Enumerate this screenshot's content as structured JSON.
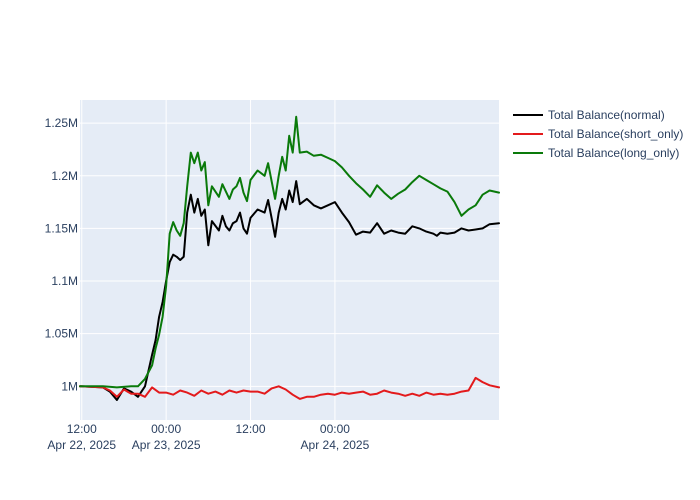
{
  "chart_data": {
    "type": "line",
    "title": "",
    "xlabel": "",
    "ylabel": "",
    "x_range": [
      "2025-04-22 11:45",
      "2025-04-24 23:20"
    ],
    "ylim": [
      968000,
      1272000
    ],
    "x_ticks": [
      {
        "at": "2025-04-22 12:00",
        "line1": "12:00",
        "line2": "Apr 22, 2025"
      },
      {
        "at": "2025-04-23 00:00",
        "line1": "00:00",
        "line2": "Apr 23, 2025"
      },
      {
        "at": "2025-04-23 12:00",
        "line1": "12:00",
        "line2": ""
      },
      {
        "at": "2025-04-24 00:00",
        "line1": "00:00",
        "line2": "Apr 24, 2025"
      }
    ],
    "y_ticks": [
      {
        "value": 1000000,
        "label": "1M"
      },
      {
        "value": 1050000,
        "label": "1.05M"
      },
      {
        "value": 1100000,
        "label": "1.1M"
      },
      {
        "value": 1150000,
        "label": "1.15M"
      },
      {
        "value": 1200000,
        "label": "1.2M"
      },
      {
        "value": 1250000,
        "label": "1.25M"
      }
    ],
    "grid": true,
    "legend_position": "right",
    "series": [
      {
        "name": "Total Balance(normal)",
        "color": "#000000",
        "points": [
          [
            "2025-04-22 11:45",
            1000000
          ],
          [
            "2025-04-22 15:00",
            999000
          ],
          [
            "2025-04-22 16:00",
            995000
          ],
          [
            "2025-04-22 17:00",
            987000
          ],
          [
            "2025-04-22 18:00",
            998000
          ],
          [
            "2025-04-22 19:00",
            995000
          ],
          [
            "2025-04-22 20:00",
            990000
          ],
          [
            "2025-04-22 21:00",
            1000000
          ],
          [
            "2025-04-22 22:00",
            1030000
          ],
          [
            "2025-04-22 22:30",
            1044000
          ],
          [
            "2025-04-22 23:00",
            1066000
          ],
          [
            "2025-04-22 23:30",
            1080000
          ],
          [
            "2025-04-23 00:00",
            1100000
          ],
          [
            "2025-04-23 00:30",
            1118000
          ],
          [
            "2025-04-23 01:00",
            1125000
          ],
          [
            "2025-04-23 01:30",
            1123000
          ],
          [
            "2025-04-23 02:00",
            1120000
          ],
          [
            "2025-04-23 02:30",
            1123000
          ],
          [
            "2025-04-23 03:00",
            1165000
          ],
          [
            "2025-04-23 03:30",
            1182000
          ],
          [
            "2025-04-23 04:00",
            1165000
          ],
          [
            "2025-04-23 04:30",
            1178000
          ],
          [
            "2025-04-23 05:00",
            1162000
          ],
          [
            "2025-04-23 05:30",
            1168000
          ],
          [
            "2025-04-23 06:00",
            1134000
          ],
          [
            "2025-04-23 06:30",
            1157000
          ],
          [
            "2025-04-23 07:30",
            1148000
          ],
          [
            "2025-04-23 08:00",
            1162000
          ],
          [
            "2025-04-23 08:30",
            1152000
          ],
          [
            "2025-04-23 09:00",
            1148000
          ],
          [
            "2025-04-23 09:30",
            1155000
          ],
          [
            "2025-04-23 10:00",
            1157000
          ],
          [
            "2025-04-23 10:30",
            1165000
          ],
          [
            "2025-04-23 11:00",
            1150000
          ],
          [
            "2025-04-23 11:30",
            1145000
          ],
          [
            "2025-04-23 12:00",
            1160000
          ],
          [
            "2025-04-23 13:00",
            1168000
          ],
          [
            "2025-04-23 14:00",
            1165000
          ],
          [
            "2025-04-23 14:30",
            1177000
          ],
          [
            "2025-04-23 15:00",
            1160000
          ],
          [
            "2025-04-23 15:30",
            1142000
          ],
          [
            "2025-04-23 16:00",
            1165000
          ],
          [
            "2025-04-23 16:30",
            1178000
          ],
          [
            "2025-04-23 17:00",
            1168000
          ],
          [
            "2025-04-23 17:30",
            1186000
          ],
          [
            "2025-04-23 18:00",
            1175000
          ],
          [
            "2025-04-23 18:30",
            1195000
          ],
          [
            "2025-04-23 19:00",
            1173000
          ],
          [
            "2025-04-23 20:00",
            1178000
          ],
          [
            "2025-04-23 21:00",
            1172000
          ],
          [
            "2025-04-23 22:00",
            1169000
          ],
          [
            "2025-04-23 23:00",
            1172000
          ],
          [
            "2025-04-24 00:00",
            1175000
          ],
          [
            "2025-04-24 01:00",
            1165000
          ],
          [
            "2025-04-24 02:00",
            1156000
          ],
          [
            "2025-04-24 03:00",
            1144000
          ],
          [
            "2025-04-24 04:00",
            1147000
          ],
          [
            "2025-04-24 05:00",
            1146000
          ],
          [
            "2025-04-24 06:00",
            1155000
          ],
          [
            "2025-04-24 07:00",
            1145000
          ],
          [
            "2025-04-24 08:00",
            1148000
          ],
          [
            "2025-04-24 09:00",
            1146000
          ],
          [
            "2025-04-24 10:00",
            1145000
          ],
          [
            "2025-04-24 11:00",
            1152000
          ],
          [
            "2025-04-24 12:00",
            1150000
          ],
          [
            "2025-04-24 13:00",
            1147000
          ],
          [
            "2025-04-24 14:00",
            1145000
          ],
          [
            "2025-04-24 14:30",
            1143000
          ],
          [
            "2025-04-24 15:00",
            1146000
          ],
          [
            "2025-04-24 16:00",
            1145000
          ],
          [
            "2025-04-24 17:00",
            1146000
          ],
          [
            "2025-04-24 18:00",
            1150000
          ],
          [
            "2025-04-24 19:00",
            1148000
          ],
          [
            "2025-04-24 20:00",
            1149000
          ],
          [
            "2025-04-24 21:00",
            1150000
          ],
          [
            "2025-04-24 22:00",
            1154000
          ],
          [
            "2025-04-24 23:20",
            1155000
          ]
        ]
      },
      {
        "name": "Total Balance(short_only)",
        "color": "#e31a1c",
        "points": [
          [
            "2025-04-22 11:45",
            1000000
          ],
          [
            "2025-04-22 15:00",
            999000
          ],
          [
            "2025-04-22 16:00",
            996000
          ],
          [
            "2025-04-22 17:00",
            990000
          ],
          [
            "2025-04-22 18:00",
            997000
          ],
          [
            "2025-04-22 19:00",
            993000
          ],
          [
            "2025-04-22 20:00",
            993000
          ],
          [
            "2025-04-22 21:00",
            990000
          ],
          [
            "2025-04-22 22:00",
            999000
          ],
          [
            "2025-04-22 23:00",
            994000
          ],
          [
            "2025-04-23 00:00",
            994000
          ],
          [
            "2025-04-23 01:00",
            992000
          ],
          [
            "2025-04-23 02:00",
            996000
          ],
          [
            "2025-04-23 03:00",
            994000
          ],
          [
            "2025-04-23 04:00",
            991000
          ],
          [
            "2025-04-23 05:00",
            996000
          ],
          [
            "2025-04-23 06:00",
            993000
          ],
          [
            "2025-04-23 07:00",
            995000
          ],
          [
            "2025-04-23 08:00",
            992000
          ],
          [
            "2025-04-23 09:00",
            996000
          ],
          [
            "2025-04-23 10:00",
            994000
          ],
          [
            "2025-04-23 11:00",
            996000
          ],
          [
            "2025-04-23 12:00",
            995000
          ],
          [
            "2025-04-23 13:00",
            995000
          ],
          [
            "2025-04-23 14:00",
            993000
          ],
          [
            "2025-04-23 15:00",
            998000
          ],
          [
            "2025-04-23 16:00",
            1000000
          ],
          [
            "2025-04-23 17:00",
            997000
          ],
          [
            "2025-04-23 18:00",
            992000
          ],
          [
            "2025-04-23 19:00",
            988000
          ],
          [
            "2025-04-23 20:00",
            990000
          ],
          [
            "2025-04-23 21:00",
            990000
          ],
          [
            "2025-04-23 22:00",
            992000
          ],
          [
            "2025-04-23 23:00",
            993000
          ],
          [
            "2025-04-24 00:00",
            992000
          ],
          [
            "2025-04-24 01:00",
            994000
          ],
          [
            "2025-04-24 02:00",
            993000
          ],
          [
            "2025-04-24 03:00",
            994000
          ],
          [
            "2025-04-24 04:00",
            995000
          ],
          [
            "2025-04-24 05:00",
            992000
          ],
          [
            "2025-04-24 06:00",
            993000
          ],
          [
            "2025-04-24 07:00",
            996000
          ],
          [
            "2025-04-24 08:00",
            994000
          ],
          [
            "2025-04-24 09:00",
            993000
          ],
          [
            "2025-04-24 10:00",
            991000
          ],
          [
            "2025-04-24 11:00",
            993000
          ],
          [
            "2025-04-24 12:00",
            991000
          ],
          [
            "2025-04-24 13:00",
            994000
          ],
          [
            "2025-04-24 14:00",
            992000
          ],
          [
            "2025-04-24 15:00",
            993000
          ],
          [
            "2025-04-24 16:00",
            992000
          ],
          [
            "2025-04-24 17:00",
            993000
          ],
          [
            "2025-04-24 18:00",
            995000
          ],
          [
            "2025-04-24 19:00",
            996000
          ],
          [
            "2025-04-24 20:00",
            1008000
          ],
          [
            "2025-04-24 21:00",
            1004000
          ],
          [
            "2025-04-24 22:00",
            1001000
          ],
          [
            "2025-04-24 23:20",
            999000
          ]
        ]
      },
      {
        "name": "Total Balance(long_only)",
        "color": "#0a7a0a",
        "points": [
          [
            "2025-04-22 11:45",
            1000000
          ],
          [
            "2025-04-22 15:00",
            1000000
          ],
          [
            "2025-04-22 17:00",
            999000
          ],
          [
            "2025-04-22 19:00",
            1000000
          ],
          [
            "2025-04-22 20:00",
            1000000
          ],
          [
            "2025-04-22 21:00",
            1007000
          ],
          [
            "2025-04-22 22:00",
            1020000
          ],
          [
            "2025-04-22 22:30",
            1036000
          ],
          [
            "2025-04-22 23:00",
            1049000
          ],
          [
            "2025-04-22 23:30",
            1066000
          ],
          [
            "2025-04-23 00:00",
            1095000
          ],
          [
            "2025-04-23 00:30",
            1145000
          ],
          [
            "2025-04-23 01:00",
            1156000
          ],
          [
            "2025-04-23 01:30",
            1148000
          ],
          [
            "2025-04-23 02:00",
            1143000
          ],
          [
            "2025-04-23 02:30",
            1155000
          ],
          [
            "2025-04-23 03:00",
            1190000
          ],
          [
            "2025-04-23 03:30",
            1222000
          ],
          [
            "2025-04-23 04:00",
            1212000
          ],
          [
            "2025-04-23 04:30",
            1222000
          ],
          [
            "2025-04-23 05:00",
            1205000
          ],
          [
            "2025-04-23 05:30",
            1213000
          ],
          [
            "2025-04-23 06:00",
            1172000
          ],
          [
            "2025-04-23 06:30",
            1190000
          ],
          [
            "2025-04-23 07:30",
            1180000
          ],
          [
            "2025-04-23 08:00",
            1192000
          ],
          [
            "2025-04-23 08:30",
            1185000
          ],
          [
            "2025-04-23 09:00",
            1178000
          ],
          [
            "2025-04-23 09:30",
            1187000
          ],
          [
            "2025-04-23 10:00",
            1190000
          ],
          [
            "2025-04-23 10:30",
            1198000
          ],
          [
            "2025-04-23 11:00",
            1184000
          ],
          [
            "2025-04-23 11:30",
            1176000
          ],
          [
            "2025-04-23 12:00",
            1196000
          ],
          [
            "2025-04-23 13:00",
            1205000
          ],
          [
            "2025-04-23 14:00",
            1200000
          ],
          [
            "2025-04-23 14:30",
            1212000
          ],
          [
            "2025-04-23 15:00",
            1195000
          ],
          [
            "2025-04-23 15:30",
            1178000
          ],
          [
            "2025-04-23 16:00",
            1200000
          ],
          [
            "2025-04-23 16:30",
            1218000
          ],
          [
            "2025-04-23 17:00",
            1205000
          ],
          [
            "2025-04-23 17:30",
            1238000
          ],
          [
            "2025-04-23 18:00",
            1222000
          ],
          [
            "2025-04-23 18:30",
            1256000
          ],
          [
            "2025-04-23 19:00",
            1222000
          ],
          [
            "2025-04-23 20:00",
            1223000
          ],
          [
            "2025-04-23 21:00",
            1219000
          ],
          [
            "2025-04-23 22:00",
            1220000
          ],
          [
            "2025-04-23 23:00",
            1217000
          ],
          [
            "2025-04-24 00:00",
            1214000
          ],
          [
            "2025-04-24 01:00",
            1208000
          ],
          [
            "2025-04-24 02:00",
            1200000
          ],
          [
            "2025-04-24 03:00",
            1193000
          ],
          [
            "2025-04-24 04:00",
            1187000
          ],
          [
            "2025-04-24 05:00",
            1180000
          ],
          [
            "2025-04-24 06:00",
            1191000
          ],
          [
            "2025-04-24 07:00",
            1184000
          ],
          [
            "2025-04-24 08:00",
            1178000
          ],
          [
            "2025-04-24 09:00",
            1183000
          ],
          [
            "2025-04-24 10:00",
            1187000
          ],
          [
            "2025-04-24 11:00",
            1194000
          ],
          [
            "2025-04-24 12:00",
            1200000
          ],
          [
            "2025-04-24 13:00",
            1196000
          ],
          [
            "2025-04-24 14:00",
            1192000
          ],
          [
            "2025-04-24 15:00",
            1188000
          ],
          [
            "2025-04-24 16:00",
            1185000
          ],
          [
            "2025-04-24 17:00",
            1175000
          ],
          [
            "2025-04-24 18:00",
            1162000
          ],
          [
            "2025-04-24 19:00",
            1168000
          ],
          [
            "2025-04-24 20:00",
            1172000
          ],
          [
            "2025-04-24 21:00",
            1182000
          ],
          [
            "2025-04-24 22:00",
            1186000
          ],
          [
            "2025-04-24 23:20",
            1184000
          ]
        ]
      }
    ]
  },
  "colors": {
    "plot_background": "#e5ecf6",
    "gridline": "#ffffff",
    "text": "#2a3f5f"
  }
}
